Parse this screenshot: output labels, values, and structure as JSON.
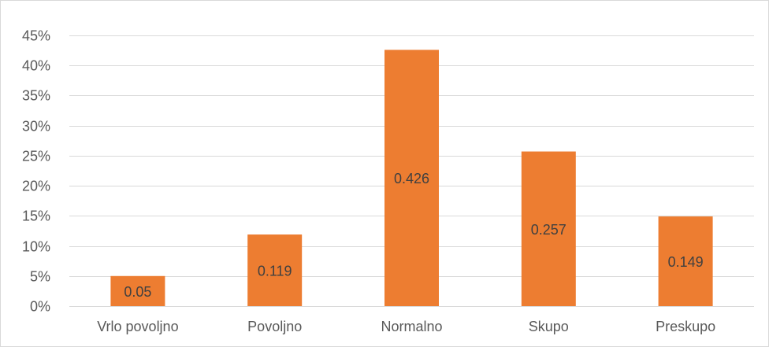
{
  "chart_data": {
    "type": "bar",
    "title": "",
    "xlabel": "",
    "ylabel": "",
    "categories": [
      "Vrlo povoljno",
      "Povoljno",
      "Normalno",
      "Skupo",
      "Preskupo"
    ],
    "values": [
      0.05,
      0.119,
      0.426,
      0.257,
      0.149
    ],
    "data_labels": [
      "0.05",
      "0.119",
      "0.426",
      "0.257",
      "0.149"
    ],
    "ylim": [
      0,
      0.45
    ],
    "y_ticks": [
      0,
      0.05,
      0.1,
      0.15,
      0.2,
      0.25,
      0.3,
      0.35,
      0.4,
      0.45
    ],
    "y_tick_labels": [
      "0%",
      "5%",
      "10%",
      "15%",
      "20%",
      "25%",
      "30%",
      "35%",
      "40%",
      "45%"
    ],
    "grid": true,
    "legend": "none",
    "bar_color": "#ED7D31",
    "grid_color": "#d9d9d9"
  }
}
